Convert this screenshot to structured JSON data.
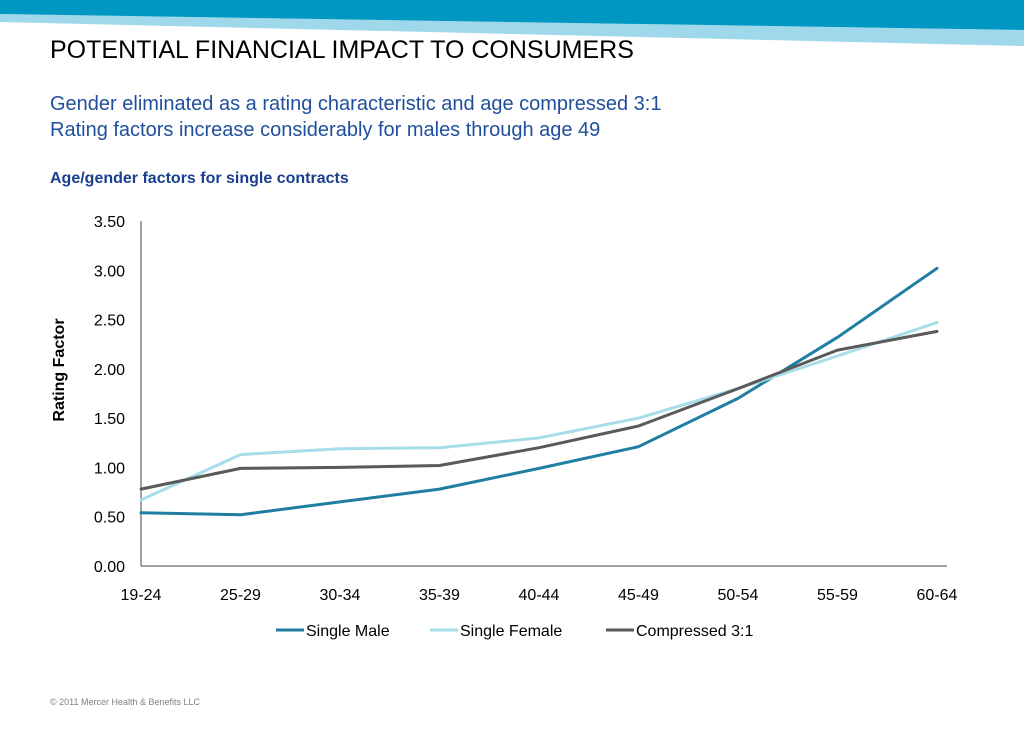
{
  "header": {
    "title": "POTENTIAL FINANCIAL IMPACT TO CONSUMERS",
    "subtitle_line1": "Gender eliminated as a rating characteristic and age compressed 3:1",
    "subtitle_line2": "Rating factors increase considerably for males through age 49"
  },
  "colors": {
    "band_dark": "#0097c2",
    "band_light": "#9fd8ea",
    "subtitle": "#1f4f9c"
  },
  "footer": {
    "copyright": "© 2011 Mercer Health & Benefits LLC"
  },
  "chart_data": {
    "type": "line",
    "title": "Age/gender factors for single contracts",
    "xlabel": "",
    "ylabel": "Rating Factor",
    "ylim": [
      0,
      3.5
    ],
    "yticks": [
      "0.00",
      "0.50",
      "1.00",
      "1.50",
      "2.00",
      "2.50",
      "3.00",
      "3.50"
    ],
    "grid": false,
    "legend_position": "bottom",
    "categories": [
      "19-24",
      "25-29",
      "30-34",
      "35-39",
      "40-44",
      "45-49",
      "50-54",
      "55-59",
      "60-64"
    ],
    "series": [
      {
        "name": "Single Male",
        "color": "#1f7ea1",
        "values": [
          0.54,
          0.52,
          0.65,
          0.78,
          0.99,
          1.21,
          1.7,
          2.32,
          3.02
        ]
      },
      {
        "name": "Single Female",
        "color": "#a6dde9",
        "values": [
          0.67,
          1.13,
          1.19,
          1.2,
          1.3,
          1.5,
          1.8,
          2.13,
          2.47
        ]
      },
      {
        "name": "Compressed 3:1",
        "color": "#5a5a5a",
        "values": [
          0.78,
          0.99,
          1.0,
          1.02,
          1.2,
          1.42,
          1.8,
          2.19,
          2.38
        ]
      }
    ]
  }
}
